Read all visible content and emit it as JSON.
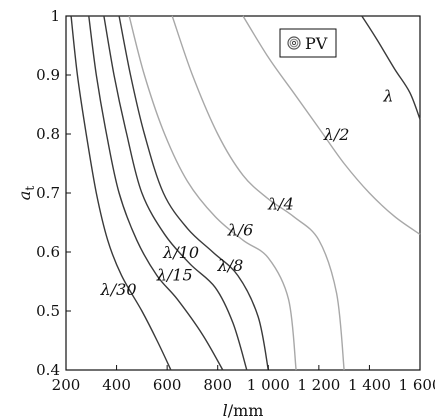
{
  "chart_data": {
    "type": "contour",
    "xlabel_var": "l",
    "xlabel_unit": "/mm",
    "ylabel_var": "a",
    "ylabel_sub": "t",
    "xlim": [
      200,
      1600
    ],
    "ylim": [
      0.4,
      1.0
    ],
    "x_ticks": [
      200,
      400,
      600,
      800,
      1000,
      1200,
      1400,
      1600
    ],
    "x_tick_labels": [
      "200",
      "400",
      "600",
      "800",
      "1 000",
      "1 200",
      "1 400",
      "1 600"
    ],
    "y_ticks": [
      0.4,
      0.5,
      0.6,
      0.7,
      0.8,
      0.9,
      1.0
    ],
    "y_tick_labels": [
      "0.4",
      "0.5",
      "0.6",
      "0.7",
      "0.8",
      "0.9",
      "1"
    ],
    "legend": {
      "label": "PV",
      "position": "top-right"
    },
    "colors": {
      "dark": "#3a3a3a",
      "light": "#a8a8a8"
    },
    "series": [
      {
        "name": "λ/30",
        "label": "λ/30",
        "shade": "dark",
        "label_at": [
          408,
          0.527
        ],
        "points": [
          [
            220,
            1.0
          ],
          [
            245,
            0.9
          ],
          [
            280,
            0.8
          ],
          [
            320,
            0.7
          ],
          [
            365,
            0.62
          ],
          [
            420,
            0.56
          ],
          [
            500,
            0.5
          ],
          [
            560,
            0.45
          ],
          [
            615,
            0.4
          ]
        ]
      },
      {
        "name": "λ/15",
        "label": "λ/15",
        "shade": "dark",
        "label_at": [
          630,
          0.552
        ],
        "points": [
          [
            290,
            1.0
          ],
          [
            320,
            0.9
          ],
          [
            360,
            0.8
          ],
          [
            410,
            0.7
          ],
          [
            480,
            0.62
          ],
          [
            560,
            0.56
          ],
          [
            640,
            0.52
          ],
          [
            740,
            0.46
          ],
          [
            820,
            0.4
          ]
        ]
      },
      {
        "name": "λ/10",
        "label": "λ/10",
        "shade": "dark",
        "label_at": [
          655,
          0.59
        ],
        "points": [
          [
            350,
            1.0
          ],
          [
            390,
            0.9
          ],
          [
            440,
            0.8
          ],
          [
            500,
            0.7
          ],
          [
            590,
            0.63
          ],
          [
            690,
            0.58
          ],
          [
            790,
            0.54
          ],
          [
            860,
            0.48
          ],
          [
            915,
            0.4
          ]
        ]
      },
      {
        "name": "λ/8",
        "label": "λ/8",
        "shade": "dark",
        "label_at": [
          850,
          0.568
        ],
        "points": [
          [
            410,
            1.0
          ],
          [
            455,
            0.9
          ],
          [
            510,
            0.8
          ],
          [
            585,
            0.7
          ],
          [
            680,
            0.64
          ],
          [
            780,
            0.6
          ],
          [
            880,
            0.56
          ],
          [
            960,
            0.49
          ],
          [
            1000,
            0.4
          ]
        ]
      },
      {
        "name": "λ/6",
        "label": "λ/6",
        "shade": "light",
        "label_at": [
          890,
          0.628
        ],
        "points": [
          [
            450,
            1.0
          ],
          [
            510,
            0.9
          ],
          [
            590,
            0.8
          ],
          [
            680,
            0.72
          ],
          [
            790,
            0.66
          ],
          [
            900,
            0.62
          ],
          [
            1000,
            0.59
          ],
          [
            1080,
            0.52
          ],
          [
            1110,
            0.4
          ]
        ]
      },
      {
        "name": "λ/4",
        "label": "λ/4",
        "shade": "light",
        "label_at": [
          1050,
          0.672
        ],
        "points": [
          [
            620,
            1.0
          ],
          [
            700,
            0.9
          ],
          [
            800,
            0.8
          ],
          [
            900,
            0.73
          ],
          [
            1000,
            0.69
          ],
          [
            1100,
            0.66
          ],
          [
            1200,
            0.62
          ],
          [
            1270,
            0.53
          ],
          [
            1300,
            0.4
          ]
        ]
      },
      {
        "name": "λ/2",
        "label": "λ/2",
        "shade": "light",
        "label_at": [
          1270,
          0.79
        ],
        "points": [
          [
            900,
            1.0
          ],
          [
            1000,
            0.93
          ],
          [
            1100,
            0.87
          ],
          [
            1200,
            0.81
          ],
          [
            1300,
            0.75
          ],
          [
            1400,
            0.7
          ],
          [
            1500,
            0.66
          ],
          [
            1600,
            0.63
          ]
        ]
      },
      {
        "name": "λ",
        "label": "λ",
        "shade": "dark",
        "label_at": [
          1475,
          0.855
        ],
        "points": [
          [
            1370,
            1.0
          ],
          [
            1430,
            0.96
          ],
          [
            1500,
            0.91
          ],
          [
            1560,
            0.87
          ],
          [
            1600,
            0.825
          ]
        ]
      }
    ]
  }
}
